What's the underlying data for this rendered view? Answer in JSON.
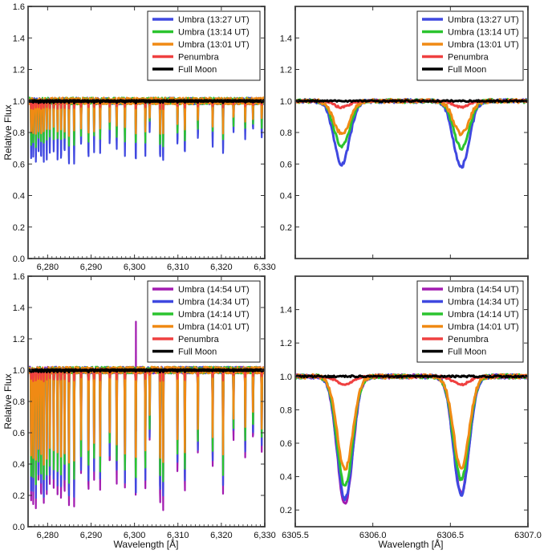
{
  "figure": {
    "ylabel": "Relative Flux",
    "xlabel": "Wavelength [Å]"
  },
  "chart_data": [
    {
      "id": "top-left",
      "type": "line",
      "title": "",
      "xlabel": "",
      "ylabel": "Relative Flux",
      "xlim": [
        6275.5,
        6330
      ],
      "ylim": [
        0.0,
        1.6
      ],
      "xticks": [
        6280,
        6290,
        6300,
        6310,
        6320,
        6330
      ],
      "xtick_labels": [
        "6,280",
        "6,290",
        "6,300",
        "6,310",
        "6,320",
        "6,330"
      ],
      "yticks": [
        0.0,
        0.2,
        0.4,
        0.6,
        0.8,
        1.0,
        1.2,
        1.4,
        1.6
      ],
      "ytick_labels": [
        "0.0",
        "0.2",
        "0.4",
        "0.6",
        "0.8",
        "1.0",
        "1.2",
        "1.4",
        "1.6"
      ],
      "legend_position": "top-right",
      "line_positions": [
        6276.2,
        6276.7,
        6277.3,
        6277.9,
        6278.5,
        6279.1,
        6279.8,
        6280.5,
        6281.4,
        6282.3,
        6283.1,
        6283.9,
        6284.9,
        6286.1,
        6287.7,
        6289.4,
        6290.7,
        6292.1,
        6294.3,
        6295.9,
        6297.8,
        6300.3,
        6302.5,
        6303.5,
        6305.9,
        6306.6,
        6309.9,
        6311.6,
        6314.6,
        6318.0,
        6320.4,
        6322.8,
        6325.5,
        6327.3,
        6329.3
      ],
      "line_depth_factor": [
        0.9,
        0.95,
        1.0,
        0.85,
        0.95,
        1.0,
        0.9,
        0.8,
        0.85,
        0.9,
        0.95,
        0.9,
        1.0,
        0.95,
        0.75,
        0.9,
        0.8,
        0.85,
        0.7,
        0.8,
        0.85,
        1.0,
        0.85,
        0.5,
        1.0,
        1.0,
        0.75,
        0.9,
        0.6,
        0.7,
        0.9,
        0.5,
        0.6,
        0.5,
        0.6
      ],
      "series": [
        {
          "name": "Umbra (13:27 UT)",
          "color": "#3f48e0",
          "line_min": 0.6
        },
        {
          "name": "Umbra (13:14 UT)",
          "color": "#2bc42f",
          "line_min": 0.71
        },
        {
          "name": "Umbra (13:01 UT)",
          "color": "#f08a14",
          "line_min": 0.78
        },
        {
          "name": "Penumbra",
          "color": "#ef4040",
          "line_min": 0.95
        },
        {
          "name": "Full Moon",
          "color": "#000000",
          "line_min": 0.99
        }
      ]
    },
    {
      "id": "top-right",
      "type": "line",
      "title": "",
      "xlabel": "",
      "ylabel": "",
      "xlim": [
        6305.5,
        6307.0
      ],
      "ylim": [
        0.0,
        1.6
      ],
      "xticks": [
        6305.5,
        6306.0,
        6306.5,
        6307.0
      ],
      "xtick_labels": [
        "",
        "",
        "",
        ""
      ],
      "yticks": [
        0.2,
        0.4,
        0.6,
        0.8,
        1.0,
        1.2,
        1.4
      ],
      "ytick_labels": [
        "0.2",
        "0.4",
        "0.6",
        "0.8",
        "1.0",
        "1.2",
        "1.4"
      ],
      "legend_position": "top-right",
      "line_positions": [
        6305.8,
        6306.57
      ],
      "series": [
        {
          "name": "Umbra (13:27 UT)",
          "color": "#3f48e0",
          "line_min": [
            0.6,
            0.58
          ]
        },
        {
          "name": "Umbra (13:14 UT)",
          "color": "#2bc42f",
          "line_min": [
            0.71,
            0.7
          ]
        },
        {
          "name": "Umbra (13:01 UT)",
          "color": "#f08a14",
          "line_min": [
            0.79,
            0.79
          ]
        },
        {
          "name": "Penumbra",
          "color": "#ef4040",
          "line_min": [
            0.96,
            0.96
          ]
        },
        {
          "name": "Full Moon",
          "color": "#000000",
          "line_min": [
            1.0,
            1.0
          ]
        }
      ]
    },
    {
      "id": "bottom-left",
      "type": "line",
      "title": "",
      "xlabel": "Wavelength [Å]",
      "ylabel": "Relative Flux",
      "xlim": [
        6275.5,
        6330
      ],
      "ylim": [
        0.0,
        1.6
      ],
      "xticks": [
        6280,
        6290,
        6300,
        6310,
        6320,
        6330
      ],
      "xtick_labels": [
        "6,280",
        "6,290",
        "6,300",
        "6,310",
        "6,320",
        "6,330"
      ],
      "yticks": [
        0.0,
        0.2,
        0.4,
        0.6,
        0.8,
        1.0,
        1.2,
        1.4,
        1.6
      ],
      "ytick_labels": [
        "0.0",
        "0.2",
        "0.4",
        "0.6",
        "0.8",
        "1.0",
        "1.2",
        "1.4",
        "1.6"
      ],
      "legend_position": "top-right",
      "line_positions": [
        6276.2,
        6276.7,
        6277.3,
        6277.9,
        6278.5,
        6279.1,
        6279.8,
        6280.5,
        6281.4,
        6282.3,
        6283.1,
        6283.9,
        6284.9,
        6286.1,
        6287.7,
        6289.4,
        6290.7,
        6292.1,
        6294.3,
        6295.9,
        6297.8,
        6300.3,
        6302.5,
        6303.5,
        6305.9,
        6306.6,
        6309.9,
        6311.6,
        6314.6,
        6318.0,
        6320.4,
        6322.8,
        6325.5,
        6327.3,
        6329.3
      ],
      "line_depth_factor": [
        0.9,
        0.95,
        1.0,
        0.85,
        0.95,
        1.0,
        0.9,
        0.8,
        0.85,
        0.9,
        0.95,
        0.9,
        1.0,
        0.95,
        0.75,
        0.9,
        0.8,
        0.85,
        0.7,
        0.8,
        0.85,
        1.0,
        0.85,
        0.5,
        1.0,
        1.0,
        0.75,
        0.9,
        0.6,
        0.7,
        0.9,
        0.5,
        0.6,
        0.5,
        0.6
      ],
      "spike": {
        "x": 6300.3,
        "y": 1.31
      },
      "series": [
        {
          "name": "Umbra (14:54 UT)",
          "color": "#a21bb0",
          "line_min": 0.09
        },
        {
          "name": "Umbra (14:34 UT)",
          "color": "#3f48e0",
          "line_min": 0.16
        },
        {
          "name": "Umbra (14:14 UT)",
          "color": "#2bc42f",
          "line_min": 0.26
        },
        {
          "name": "Umbra (14:01 UT)",
          "color": "#f08a14",
          "line_min": 0.38
        },
        {
          "name": "Penumbra",
          "color": "#ef4040",
          "line_min": 0.93
        },
        {
          "name": "Full Moon",
          "color": "#000000",
          "line_min": 0.99
        }
      ]
    },
    {
      "id": "bottom-right",
      "type": "line",
      "title": "",
      "xlabel": "Wavelength [Å]",
      "ylabel": "",
      "xlim": [
        6305.5,
        6307.0
      ],
      "ylim": [
        0.1,
        1.6
      ],
      "xticks": [
        6305.5,
        6306.0,
        6306.5,
        6307.0
      ],
      "xtick_labels": [
        "6305.5",
        "6306.0",
        "6306.5",
        "6307.0"
      ],
      "yticks": [
        0.2,
        0.4,
        0.6,
        0.8,
        1.0,
        1.2,
        1.4
      ],
      "ytick_labels": [
        "0.2",
        "0.4",
        "0.6",
        "0.8",
        "1.0",
        "1.2",
        "1.4"
      ],
      "legend_position": "top-right",
      "line_positions": [
        6305.82,
        6306.57
      ],
      "series": [
        {
          "name": "Umbra (14:54 UT)",
          "color": "#a21bb0",
          "line_min": [
            0.24,
            0.3
          ]
        },
        {
          "name": "Umbra (14:34 UT)",
          "color": "#3f48e0",
          "line_min": [
            0.26,
            0.29
          ]
        },
        {
          "name": "Umbra (14:14 UT)",
          "color": "#2bc42f",
          "line_min": [
            0.34,
            0.38
          ]
        },
        {
          "name": "Umbra (14:01 UT)",
          "color": "#f08a14",
          "line_min": [
            0.44,
            0.45
          ]
        },
        {
          "name": "Penumbra",
          "color": "#ef4040",
          "line_min": [
            0.95,
            0.95
          ]
        },
        {
          "name": "Full Moon",
          "color": "#000000",
          "line_min": [
            1.0,
            1.0
          ]
        }
      ]
    }
  ]
}
